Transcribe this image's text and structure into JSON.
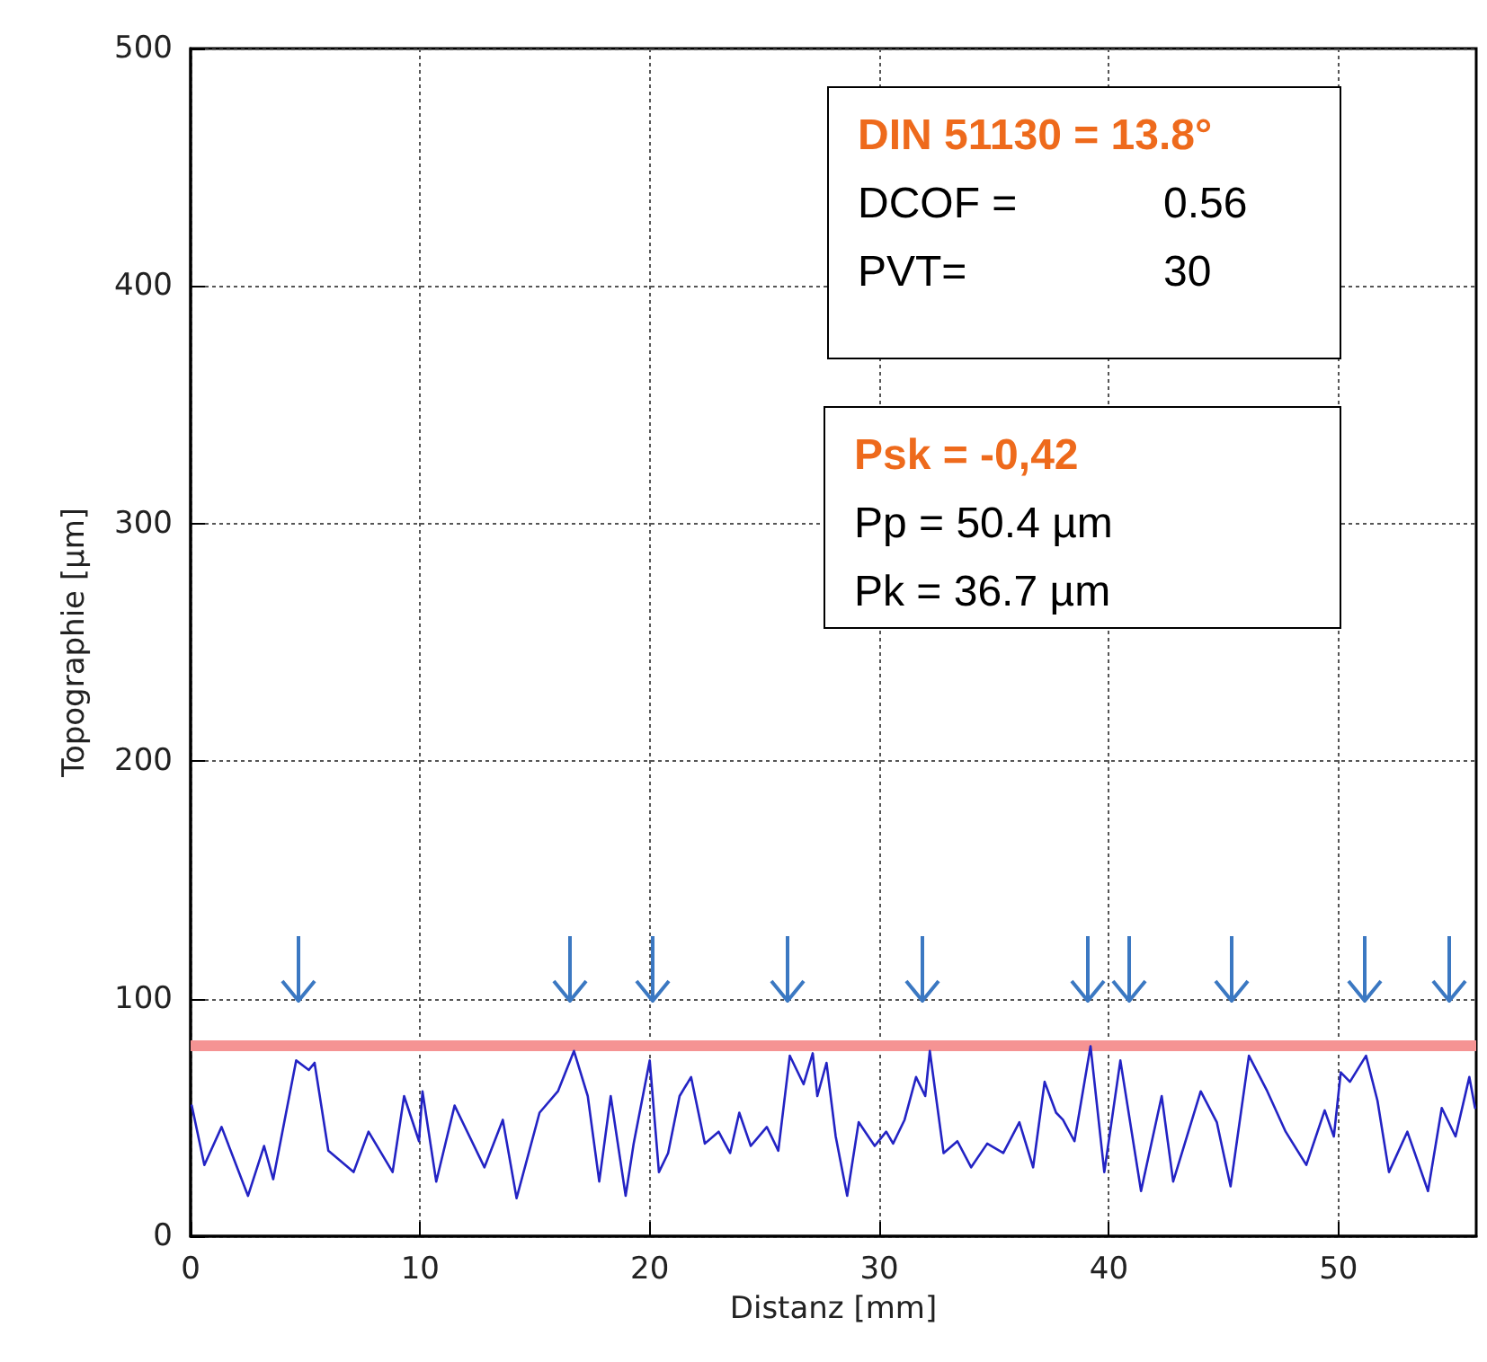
{
  "chart_data": {
    "type": "line",
    "xlabel": "Distanz [mm]",
    "ylabel": "Topographie [µm]",
    "xlim": [
      0,
      56
    ],
    "xticks": [
      0,
      10,
      20,
      30,
      40,
      50
    ],
    "ylim": [
      0,
      500
    ],
    "yticks": [
      0,
      100,
      200,
      300,
      400,
      500
    ],
    "grid": true,
    "marker": "none",
    "line_style": "solid",
    "series": [
      {
        "color": "#2323c4",
        "x": [
          0.05,
          0.6,
          1.35,
          2.5,
          3.2,
          3.6,
          4.6,
          5.15,
          5.4,
          6.0,
          7.1,
          7.75,
          8.8,
          9.3,
          9.95,
          10.1,
          10.7,
          11.5,
          12.8,
          13.6,
          14.2,
          15.2,
          16.0,
          16.7,
          17.3,
          17.8,
          18.3,
          18.95,
          19.3,
          20.0,
          20.4,
          20.8,
          21.3,
          21.8,
          22.4,
          23.0,
          23.5,
          23.9,
          24.4,
          25.1,
          25.6,
          26.1,
          26.7,
          27.1,
          27.3,
          27.7,
          28.1,
          28.6,
          29.1,
          29.8,
          30.3,
          30.6,
          31.1,
          31.6,
          32.0,
          32.2,
          32.8,
          33.4,
          34.0,
          34.7,
          35.4,
          36.1,
          36.7,
          37.2,
          37.7,
          38.0,
          38.5,
          39.2,
          39.8,
          40.5,
          41.4,
          42.3,
          42.8,
          44.0,
          44.7,
          45.3,
          46.1,
          46.9,
          47.7,
          48.6,
          49.4,
          49.8,
          50.1,
          50.5,
          51.2,
          51.7,
          52.2,
          53.0,
          53.9,
          54.5,
          55.1,
          55.7,
          55.95
        ],
        "values": [
          55,
          30,
          46,
          17,
          38,
          24,
          74,
          70,
          73,
          36,
          27,
          44,
          27,
          59,
          40,
          61,
          23,
          55,
          29,
          49,
          16,
          52,
          61,
          78,
          59,
          23,
          59,
          17,
          39,
          74,
          27,
          35,
          59,
          67,
          39,
          44,
          35,
          52,
          38,
          46,
          36,
          76,
          64,
          77,
          59,
          73,
          42,
          17,
          48,
          38,
          44,
          39,
          49,
          67,
          59,
          78,
          35,
          40,
          29,
          39,
          35,
          48,
          29,
          65,
          52,
          49,
          40,
          80,
          27,
          74,
          19,
          59,
          23,
          61,
          48,
          21,
          76,
          61,
          44,
          30,
          53,
          42,
          69,
          65,
          76,
          57,
          27,
          44,
          19,
          54,
          42,
          67,
          54
        ]
      }
    ],
    "ref_lines": [
      {
        "axis": "y",
        "value": 80,
        "color": "#f59393"
      }
    ],
    "annotations": [
      "DIN 51130 = 13.8°\nDCOF =\t0.56\nPVT=\t30",
      "Psk = -0,42\nPp = 50.4 µm\nPk = 36.7 µm"
    ]
  }
}
